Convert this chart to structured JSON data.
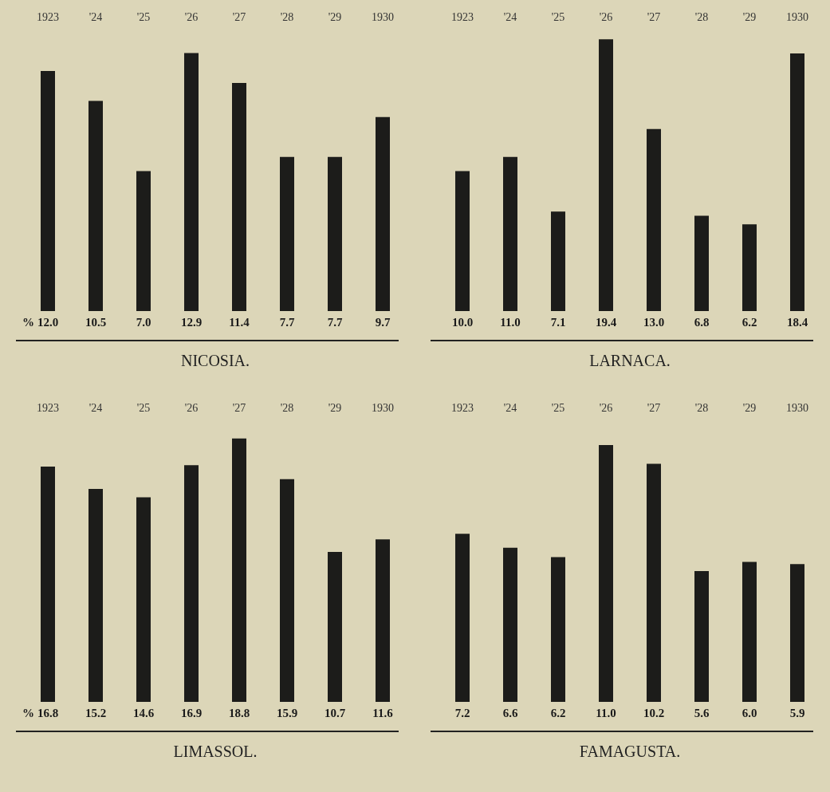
{
  "chart_data": [
    {
      "type": "bar",
      "title": "NICOSIA.",
      "annotations": [
        "%"
      ],
      "categories": [
        "1923",
        "'24",
        "'25",
        "'26",
        "'27",
        "'28",
        "'29",
        "1930"
      ],
      "color": "#1c1c1a",
      "values": [
        12.0,
        10.5,
        7.0,
        12.9,
        11.4,
        7.7,
        7.7,
        9.7
      ],
      "value_labels": [
        "12.0",
        "10.5",
        "7.0",
        "12.9",
        "11.4",
        "7.7",
        "7.7",
        "9.7"
      ],
      "grid": false,
      "legend": false
    },
    {
      "type": "bar",
      "title": "LARNACA.",
      "categories": [
        "1923",
        "'24",
        "'25",
        "'26",
        "'27",
        "'28",
        "'29",
        "1930"
      ],
      "color": "#1c1c1a",
      "values": [
        10.0,
        11.0,
        7.1,
        19.4,
        13.0,
        6.8,
        6.2,
        18.4
      ],
      "value_labels": [
        "10.0",
        "11.0",
        "7.1",
        "19.4",
        "13.0",
        "6.8",
        "6.2",
        "18.4"
      ],
      "grid": false,
      "legend": false
    },
    {
      "type": "bar",
      "title": "LIMASSOL.",
      "annotations": [
        "%"
      ],
      "categories": [
        "1923",
        "'24",
        "'25",
        "'26",
        "'27",
        "'28",
        "'29",
        "1930"
      ],
      "color": "#1c1c1a",
      "values": [
        16.8,
        15.2,
        14.6,
        16.9,
        18.8,
        15.9,
        10.7,
        11.6
      ],
      "value_labels": [
        "16.8",
        "15.2",
        "14.6",
        "16.9",
        "18.8",
        "15.9",
        "10.7",
        "11.6"
      ],
      "grid": false,
      "legend": false
    },
    {
      "type": "bar",
      "title": "FAMAGUSTA.",
      "categories": [
        "1923",
        "'24",
        "'25",
        "'26",
        "'27",
        "'28",
        "'29",
        "1930"
      ],
      "color": "#1c1c1a",
      "values": [
        7.2,
        6.6,
        6.2,
        11.0,
        10.2,
        5.6,
        6.0,
        5.9
      ],
      "value_labels": [
        "7.2",
        "6.6",
        "6.2",
        "11.0",
        "10.2",
        "5.6",
        "6.0",
        "5.9"
      ],
      "grid": false,
      "legend": false
    }
  ]
}
